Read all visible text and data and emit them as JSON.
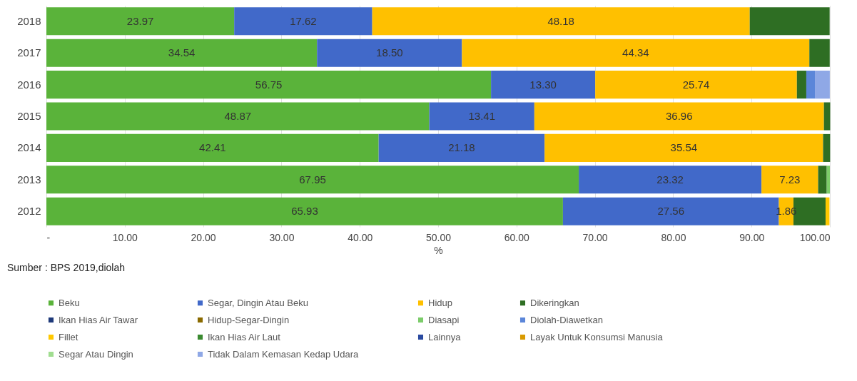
{
  "chart_data": {
    "type": "bar",
    "orientation": "horizontal",
    "stacked": true,
    "categories": [
      "2018",
      "2017",
      "2016",
      "2015",
      "2014",
      "2013",
      "2012"
    ],
    "xlabel": "%",
    "xlim": [
      0,
      100
    ],
    "xticks": [
      {
        "value": 0,
        "label": "-"
      },
      {
        "value": 10,
        "label": "10.00"
      },
      {
        "value": 20,
        "label": "20.00"
      },
      {
        "value": 30,
        "label": "30.00"
      },
      {
        "value": 40,
        "label": "40.00"
      },
      {
        "value": 50,
        "label": "50.00"
      },
      {
        "value": 60,
        "label": "60.00"
      },
      {
        "value": 70,
        "label": "70.00"
      },
      {
        "value": 80,
        "label": "80.00"
      },
      {
        "value": 90,
        "label": "90.00"
      },
      {
        "value": 100,
        "label": "100.00"
      }
    ],
    "grid": "x",
    "legend": "bottom",
    "annotations": [
      "Sumber : BPS 2019,diolah"
    ],
    "series": [
      {
        "name": "Beku",
        "color": "#5ab33a",
        "values": [
          23.97,
          34.54,
          56.75,
          48.87,
          42.41,
          67.95,
          65.93
        ],
        "value_labels": [
          "23.97",
          "34.54",
          "56.75",
          "48.87",
          "42.41",
          "67.95",
          "65.93"
        ]
      },
      {
        "name": "Segar, Dingin Atau Beku",
        "color": "#4169c9",
        "values": [
          17.62,
          18.5,
          13.3,
          13.41,
          21.18,
          23.32,
          27.56
        ],
        "value_labels": [
          "17.62",
          "18.50",
          "13.30",
          "13.41",
          "21.18",
          "23.32",
          "27.56"
        ]
      },
      {
        "name": "Hidup",
        "color": "#ffc000",
        "values": [
          48.18,
          44.34,
          25.74,
          36.96,
          35.54,
          7.23,
          1.86
        ],
        "value_labels": [
          "48.18",
          "44.34",
          "25.74",
          "36.96",
          "35.54",
          "7.23",
          "1.86"
        ]
      },
      {
        "name": "Dikeringkan",
        "color": "#2e6e23",
        "values": [
          10.2,
          2.6,
          1.2,
          0.8,
          0.9,
          1.1,
          4.1
        ]
      },
      {
        "name": "Ikan Hias Air Tawar",
        "color": "#1f3a7a",
        "values": [
          null,
          null,
          null,
          null,
          null,
          null,
          null
        ]
      },
      {
        "name": "Hidup-Segar-Dingin",
        "color": "#8a6a00",
        "values": [
          null,
          null,
          null,
          null,
          null,
          null,
          null
        ]
      },
      {
        "name": "Diasapi",
        "color": "#7ccc6a",
        "values": [
          null,
          null,
          null,
          null,
          null,
          0.4,
          null
        ]
      },
      {
        "name": "Diolah-Diawetkan",
        "color": "#5b86d9",
        "values": [
          null,
          null,
          1.1,
          null,
          null,
          null,
          null
        ]
      },
      {
        "name": "Fillet",
        "color": "#ffc800",
        "values": [
          null,
          null,
          null,
          null,
          null,
          null,
          0.5
        ]
      },
      {
        "name": "Ikan Hias Air Laut",
        "color": "#3a8a30",
        "values": [
          null,
          null,
          null,
          null,
          null,
          null,
          null
        ]
      },
      {
        "name": "Lainnya",
        "color": "#2a4aa0",
        "values": [
          null,
          null,
          null,
          null,
          null,
          null,
          null
        ]
      },
      {
        "name": "Layak Untuk Konsumsi Manusia",
        "color": "#d99a00",
        "values": [
          null,
          null,
          null,
          null,
          null,
          null,
          null
        ]
      },
      {
        "name": "Segar Atau Dingin",
        "color": "#a0dd90",
        "values": [
          null,
          null,
          null,
          null,
          null,
          null,
          null
        ]
      },
      {
        "name": "Tidak Dalam Kemasan Kedap Udara",
        "color": "#8fa8e6",
        "values": [
          null,
          null,
          1.9,
          null,
          null,
          null,
          null
        ]
      }
    ]
  }
}
